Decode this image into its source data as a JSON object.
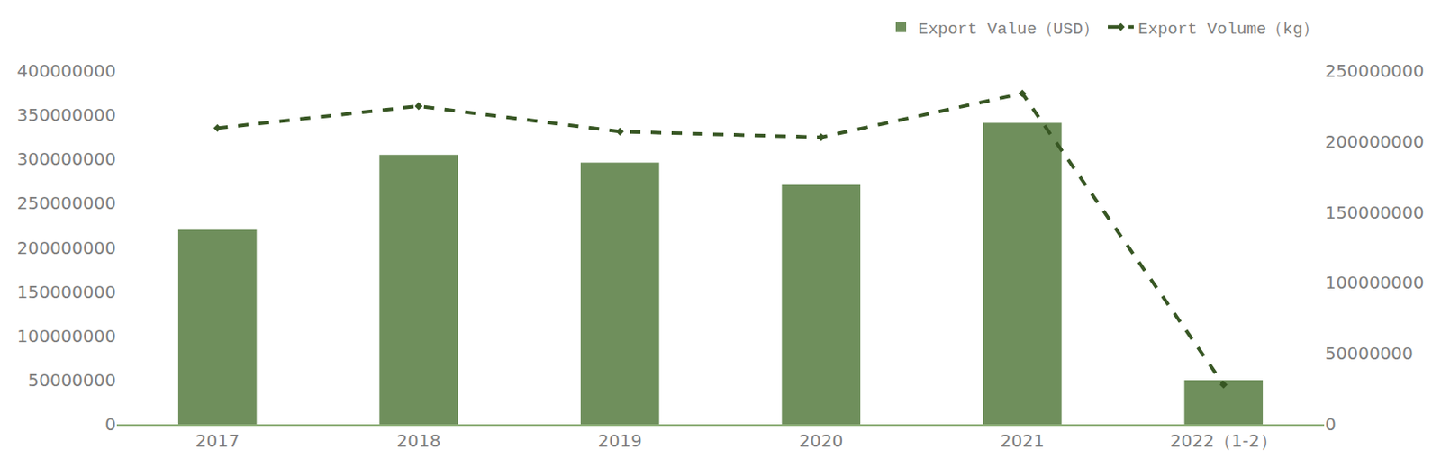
{
  "chart_data": {
    "type": "bar",
    "categories": [
      "2017",
      "2018",
      "2019",
      "2020",
      "2021",
      "2022（1-2）"
    ],
    "series": [
      {
        "name": "Export Value（USD）",
        "type": "bar",
        "color": "#6f8f5c",
        "values": [
          220000000,
          305000000,
          296000000,
          271000000,
          341000000,
          50000000
        ]
      },
      {
        "name": "Export Volume（kg）",
        "type": "line",
        "axis": "y2",
        "color": "#375623",
        "line_style": "dash",
        "marker": "diamond",
        "values": [
          209500000,
          225000000,
          207000000,
          203000000,
          234000000,
          28000000
        ]
      }
    ],
    "ylim": [
      0,
      400000000
    ],
    "yticks": [
      0,
      50000000,
      100000000,
      150000000,
      200000000,
      250000000,
      300000000,
      350000000,
      400000000
    ],
    "y2lim": [
      0,
      250000000
    ],
    "y2ticks": [
      0,
      50000000,
      100000000,
      150000000,
      200000000,
      250000000
    ],
    "grid": false,
    "legend": "top right"
  }
}
